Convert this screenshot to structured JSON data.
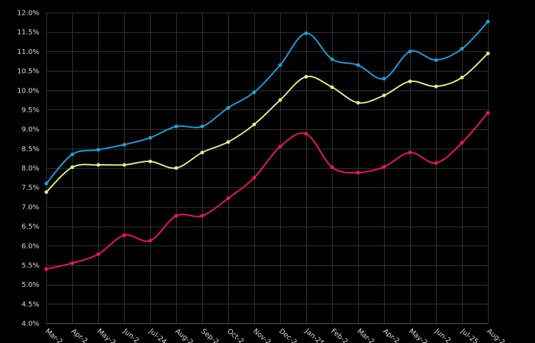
{
  "chart_data": {
    "type": "line",
    "title": "",
    "xlabel": "",
    "ylabel": "",
    "grid": true,
    "background": "#000000",
    "ylim": [
      4.0,
      12.0
    ],
    "y_ticks": [
      "4.0%",
      "4.5%",
      "5.0%",
      "5.5%",
      "6.0%",
      "6.5%",
      "7.0%",
      "7.5%",
      "8.0%",
      "8.5%",
      "9.0%",
      "9.5%",
      "10.0%",
      "10.5%",
      "11.0%",
      "11.5%",
      "12.0%"
    ],
    "categories": [
      "Mar-2",
      "Apr-2",
      "May-2",
      "Jun-2",
      "Jul-24",
      "Aug-2",
      "Sep-2",
      "Oct-2",
      "Nov-2",
      "Dec-2",
      "Jan-25",
      "Feb-2",
      "Mar-2",
      "Apr-2",
      "May-2",
      "Jun-2",
      "Jul-25",
      "Aug-2"
    ],
    "series": [
      {
        "color": "#1aa3e0",
        "values": [
          7.6,
          8.35,
          8.47,
          8.6,
          8.78,
          9.07,
          9.07,
          9.55,
          9.95,
          10.65,
          11.47,
          10.8,
          10.65,
          10.3,
          11.0,
          10.78,
          11.07,
          11.77
        ]
      },
      {
        "color": "#d7f58b",
        "values": [
          7.38,
          8.02,
          8.08,
          8.08,
          8.17,
          8.0,
          8.4,
          8.67,
          9.12,
          9.75,
          10.35,
          10.08,
          9.68,
          9.87,
          10.23,
          10.1,
          10.33,
          10.95
        ]
      },
      {
        "color": "#f0145f",
        "values": [
          5.4,
          5.55,
          5.78,
          6.27,
          6.13,
          6.77,
          6.77,
          7.22,
          7.75,
          8.55,
          8.88,
          8.02,
          7.88,
          8.03,
          8.4,
          8.13,
          8.65,
          9.42
        ]
      }
    ]
  }
}
